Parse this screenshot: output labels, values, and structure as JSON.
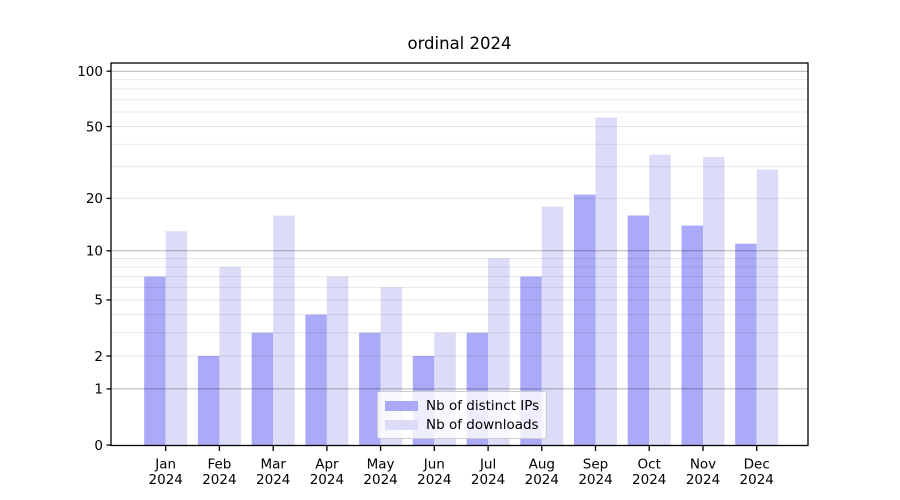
{
  "chart_data": {
    "type": "bar",
    "title": "ordinal 2024",
    "categories": [
      "Jan 2024",
      "Feb 2024",
      "Mar 2024",
      "Apr 2024",
      "May 2024",
      "Jun 2024",
      "Jul 2024",
      "Aug 2024",
      "Sep 2024",
      "Oct 2024",
      "Nov 2024",
      "Dec 2024"
    ],
    "series": [
      {
        "name": "Nb of distinct IPs",
        "color": "#aaaaf8",
        "values": [
          7,
          2,
          3,
          4,
          3,
          2,
          3,
          7,
          21,
          16,
          14,
          11
        ]
      },
      {
        "name": "Nb of downloads",
        "color": "#dcdcf8",
        "values": [
          13,
          8,
          16,
          7,
          6,
          3,
          9,
          18,
          56,
          35,
          34,
          29
        ]
      }
    ],
    "y_ticks": [
      0,
      1,
      2,
      5,
      10,
      20,
      50,
      100
    ],
    "y_scale": "log1p",
    "ylim": [
      0,
      112
    ],
    "xlabel": "",
    "ylabel": "",
    "grid": true,
    "legend_position": "lower center",
    "colors": {
      "grid_major": "#b3b3b3",
      "grid_minor": "#e8e8e8",
      "axis": "#000000",
      "background": "#ffffff",
      "text": "#000000"
    }
  }
}
